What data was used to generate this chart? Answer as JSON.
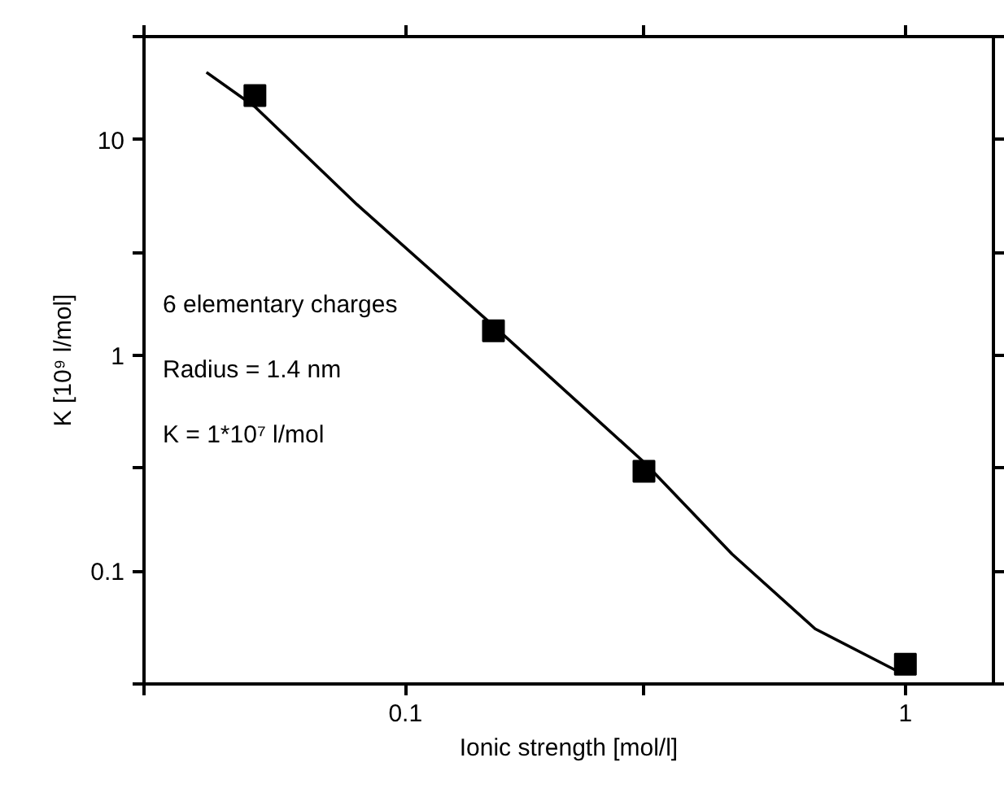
{
  "chart_data": {
    "type": "scatter",
    "xlabel": "Ionic strength [mol/l]",
    "ylabel": "K [10⁹ l/mol]",
    "log": "xy",
    "grid": false,
    "tick_labels": "xy",
    "xlim": [
      0.03,
      1.5
    ],
    "ylim": [
      0.03,
      30
    ],
    "xticks": [
      {
        "value": 0.03,
        "label": null
      },
      0.1,
      {
        "value": 0.3,
        "label": null
      },
      1
    ],
    "yticks": [
      {
        "value": 0.03,
        "label": null
      },
      0.1,
      {
        "value": 0.3,
        "label": null
      },
      1,
      {
        "value": 3,
        "label": null
      },
      10,
      {
        "value": 30,
        "label": null
      }
    ],
    "annotations": [
      "6 elementary charges",
      "Radius = 1.4 nm",
      "K = 1*10⁷ l/mol"
    ],
    "series": [
      {
        "type": "scatter",
        "marker": "square",
        "color": "#000000",
        "x": [
          0.05,
          0.15,
          0.3,
          1
        ],
        "values": [
          16,
          1.3,
          0.29,
          0.037
        ]
      },
      {
        "type": "line",
        "marker": "none",
        "line_style": "solid",
        "color": "#000000",
        "x": [
          0.04,
          0.05,
          0.08,
          0.15,
          0.3,
          0.45,
          0.66,
          0.95,
          1
        ],
        "values": [
          20.5,
          14.2,
          5.0,
          1.37,
          0.32,
          0.12,
          0.054,
          0.035,
          0.034
        ]
      }
    ]
  }
}
